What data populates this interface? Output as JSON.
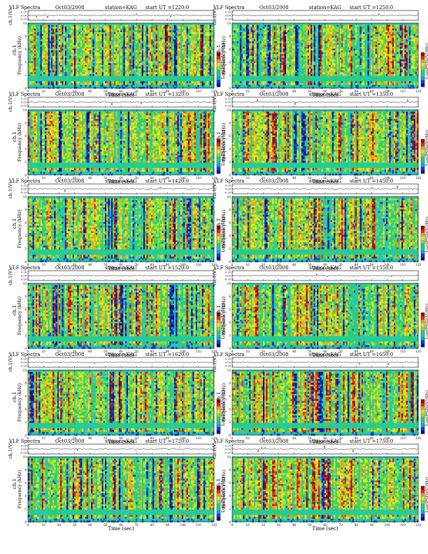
{
  "chart_data": [
    {
      "type": "heatmap",
      "panel": "spectrogram",
      "title": "VLF Spectra",
      "date": "Oct03/2008",
      "station": "station=KAG",
      "start": "start  UT  =1220:0",
      "ch_label": "ch.1(V)",
      "freq_label": "Frequency  (kHz)",
      "y_name": "ch.1",
      "xlabel": "Time  (sec)",
      "colorbar_label": "Log(PSD)(V²/Hz)",
      "x_ticks": [
        "0",
        "10",
        "20",
        "30",
        "40",
        "50",
        "60",
        "70",
        "80",
        "90",
        "100",
        "110",
        "120"
      ],
      "y_ticks": [
        "0",
        "2",
        "4",
        "6",
        "8",
        "10"
      ],
      "ch_ticks": [
        "0.20",
        "0.00",
        "-0.20"
      ],
      "xlim": [
        0,
        120
      ],
      "ylim": [
        0,
        10
      ]
    },
    {
      "type": "heatmap",
      "panel": "spectrogram",
      "title": "VLF Spectra",
      "date": "Oct03/2008",
      "station": "station=KAG",
      "start": "start  UT  =1250:0",
      "ch_label": "ch.1(V)",
      "freq_label": "Frequency  (kHz)",
      "y_name": "ch.1",
      "xlabel": "Time  (sec)",
      "colorbar_label": "Log(PSD)(V²/Hz)",
      "x_ticks": [
        "0",
        "10",
        "20",
        "30",
        "40",
        "50",
        "60",
        "70",
        "80",
        "90",
        "100",
        "110",
        "120"
      ],
      "y_ticks": [
        "0",
        "2",
        "4",
        "6",
        "8",
        "10"
      ],
      "ch_ticks": [
        "0.20",
        "0.00",
        "-0.20"
      ],
      "xlim": [
        0,
        120
      ],
      "ylim": [
        0,
        10
      ]
    },
    {
      "type": "heatmap",
      "panel": "spectrogram",
      "title": "VLF Spectra",
      "date": "Oct03/2008",
      "station": "station=KAG",
      "start": "start  UT  =1320:0",
      "ch_label": "ch.1(V)",
      "freq_label": "Frequency  (kHz)",
      "y_name": "ch.1",
      "xlabel": "Time  (sec)",
      "colorbar_label": "Log(PSD)(V²/Hz)",
      "x_ticks": [
        "0",
        "10",
        "20",
        "30",
        "40",
        "50",
        "60",
        "70",
        "80",
        "90",
        "100",
        "110",
        "120"
      ],
      "y_ticks": [
        "0",
        "2",
        "4",
        "6",
        "8",
        "10"
      ],
      "ch_ticks": [
        "0.20",
        "0.00",
        "-0.20"
      ],
      "xlim": [
        0,
        120
      ],
      "ylim": [
        0,
        10
      ]
    },
    {
      "type": "heatmap",
      "panel": "spectrogram",
      "title": "VLF Spectra",
      "date": "Oct03/2008",
      "station": "station=KAG",
      "start": "start  UT  =1350:0",
      "ch_label": "ch.1(V)",
      "freq_label": "Frequency  (kHz)",
      "y_name": "ch.1",
      "xlabel": "Time  (sec)",
      "colorbar_label": "Log(PSD)(V²/Hz)",
      "x_ticks": [
        "0",
        "10",
        "20",
        "30",
        "40",
        "50",
        "60",
        "70",
        "80",
        "90",
        "100",
        "110",
        "120"
      ],
      "y_ticks": [
        "0",
        "2",
        "4",
        "6",
        "8",
        "10"
      ],
      "ch_ticks": [
        "0.20",
        "0.00",
        "-0.20"
      ],
      "xlim": [
        0,
        120
      ],
      "ylim": [
        0,
        10
      ]
    },
    {
      "type": "heatmap",
      "panel": "spectrogram",
      "title": "VLF Spectra",
      "date": "Oct03/2008",
      "station": "station=KAG",
      "start": "start  UT  =1420:0",
      "ch_label": "ch.1(V)",
      "freq_label": "Frequency  (kHz)",
      "y_name": "ch.1",
      "xlabel": "Time  (sec)",
      "colorbar_label": "Log(PSD)(V²/Hz)",
      "x_ticks": [
        "0",
        "10",
        "20",
        "30",
        "40",
        "50",
        "60",
        "70",
        "80",
        "90",
        "100",
        "110",
        "120"
      ],
      "y_ticks": [
        "0",
        "2",
        "4",
        "6",
        "8",
        "10"
      ],
      "ch_ticks": [
        "0.20",
        "0.00",
        "-0.20"
      ],
      "xlim": [
        0,
        120
      ],
      "ylim": [
        0,
        10
      ]
    },
    {
      "type": "heatmap",
      "panel": "spectrogram",
      "title": "VLF Spectra",
      "date": "Oct03/2008",
      "station": "station=KAG",
      "start": "start  UT  =1450:0",
      "ch_label": "ch.1(V)",
      "freq_label": "Frequency  (kHz)",
      "y_name": "ch.1",
      "xlabel": "Time  (sec)",
      "colorbar_label": "Log(PSD)(V²/Hz)",
      "x_ticks": [
        "0",
        "10",
        "20",
        "30",
        "40",
        "50",
        "60",
        "70",
        "80",
        "90",
        "100",
        "110",
        "120"
      ],
      "y_ticks": [
        "0",
        "2",
        "4",
        "6",
        "8",
        "10"
      ],
      "ch_ticks": [
        "0.20",
        "0.00",
        "-0.20"
      ],
      "xlim": [
        0,
        120
      ],
      "ylim": [
        0,
        10
      ]
    },
    {
      "type": "heatmap",
      "panel": "spectrogram",
      "title": "VLF Spectra",
      "date": "Oct03/2008",
      "station": "station=KAG",
      "start": "start  UT  =1520:0",
      "ch_label": "ch.1(V)",
      "freq_label": "Frequency  (kHz)",
      "y_name": "ch.1",
      "xlabel": "Time  (sec)",
      "colorbar_label": "Log(PSD)(V²/Hz)",
      "x_ticks": [
        "0",
        "10",
        "20",
        "30",
        "40",
        "50",
        "60",
        "70",
        "80",
        "90",
        "100",
        "110",
        "120"
      ],
      "y_ticks": [
        "0",
        "2",
        "4",
        "6",
        "8",
        "10"
      ],
      "ch_ticks": [
        "0.20",
        "0.00",
        "-0.20"
      ],
      "xlim": [
        0,
        120
      ],
      "ylim": [
        0,
        10
      ]
    },
    {
      "type": "heatmap",
      "panel": "spectrogram",
      "title": "VLF Spectra",
      "date": "Oct03/2008",
      "station": "station=KAG",
      "start": "start  UT  =1550:0",
      "ch_label": "ch.1(V)",
      "freq_label": "Frequency  (kHz)",
      "y_name": "ch.1",
      "xlabel": "Time  (sec)",
      "colorbar_label": "Log(PSD)(V²/Hz)",
      "x_ticks": [
        "0",
        "10",
        "20",
        "30",
        "40",
        "50",
        "60",
        "70",
        "80",
        "90",
        "100",
        "110",
        "120"
      ],
      "y_ticks": [
        "0",
        "2",
        "4",
        "6",
        "8",
        "10"
      ],
      "ch_ticks": [
        "0.20",
        "0.00",
        "-0.20"
      ],
      "xlim": [
        0,
        120
      ],
      "ylim": [
        0,
        10
      ]
    },
    {
      "type": "heatmap",
      "panel": "spectrogram",
      "title": "VLF Spectra",
      "date": "Oct03/2008",
      "station": "station=KAG",
      "start": "start  UT  =1620:0",
      "ch_label": "ch.1(V)",
      "freq_label": "Frequency  (kHz)",
      "y_name": "ch.1",
      "xlabel": "Time  (sec)",
      "colorbar_label": "Log(PSD)(V²/Hz)",
      "x_ticks": [
        "0",
        "10",
        "20",
        "30",
        "40",
        "50",
        "60",
        "70",
        "80",
        "90",
        "100",
        "110",
        "120"
      ],
      "y_ticks": [
        "0",
        "2",
        "4",
        "6",
        "8",
        "10"
      ],
      "ch_ticks": [
        "0.20",
        "0.00",
        "-0.20"
      ],
      "xlim": [
        0,
        120
      ],
      "ylim": [
        0,
        10
      ]
    },
    {
      "type": "heatmap",
      "panel": "spectrogram",
      "title": "VLF Spectra",
      "date": "Oct03/2008",
      "station": "station=KAG",
      "start": "start  UT  =1650:0",
      "ch_label": "ch.1(V)",
      "freq_label": "Frequency  (kHz)",
      "y_name": "ch.1",
      "xlabel": "Time  (sec)",
      "colorbar_label": "Log(PSD)(V²/Hz)",
      "x_ticks": [
        "0",
        "10",
        "20",
        "30",
        "40",
        "50",
        "60",
        "70",
        "80",
        "90",
        "100",
        "110",
        "120"
      ],
      "y_ticks": [
        "0",
        "2",
        "4",
        "6",
        "8",
        "10"
      ],
      "ch_ticks": [
        "0.20",
        "0.00",
        "-0.20"
      ],
      "xlim": [
        0,
        120
      ],
      "ylim": [
        0,
        10
      ]
    },
    {
      "type": "heatmap",
      "panel": "spectrogram",
      "title": "VLF Spectra",
      "date": "Oct03/2008",
      "station": "station=KAG",
      "start": "start  UT  =1720:0",
      "ch_label": "ch.1(V)",
      "freq_label": "Frequency  (kHz)",
      "y_name": "ch.1",
      "xlabel": "Time  (sec)",
      "colorbar_label": "Log(PSD)(V²/Hz)",
      "x_ticks": [
        "0",
        "10",
        "20",
        "30",
        "40",
        "50",
        "60",
        "70",
        "80",
        "90",
        "100",
        "110",
        "120"
      ],
      "y_ticks": [
        "0",
        "2",
        "4",
        "6",
        "8",
        "10"
      ],
      "ch_ticks": [
        "0.20",
        "0.00",
        "-0.20"
      ],
      "xlim": [
        0,
        120
      ],
      "ylim": [
        0,
        10
      ]
    },
    {
      "type": "heatmap",
      "panel": "spectrogram",
      "title": "VLF Spectra",
      "date": "Oct03/2008",
      "station": "station=KAG",
      "start": "start  UT  =1750:0",
      "ch_label": "ch.1(V)",
      "freq_label": "Frequency  (kHz)",
      "y_name": "ch.1",
      "xlabel": "Time  (sec)",
      "colorbar_label": "Log(PSD)(V²/Hz)",
      "x_ticks": [
        "0",
        "10",
        "20",
        "30",
        "40",
        "50",
        "60",
        "70",
        "80",
        "90",
        "100",
        "110",
        "120"
      ],
      "y_ticks": [
        "0",
        "2",
        "4",
        "6",
        "8",
        "10"
      ],
      "ch_ticks": [
        "0.20",
        "0.00",
        "-0.20"
      ],
      "xlim": [
        0,
        120
      ],
      "ylim": [
        0,
        10
      ]
    }
  ],
  "colors": {
    "colormap": [
      "#1a0a8c",
      "#1040e0",
      "#10a8e0",
      "#20c8b0",
      "#30d060",
      "#90e030",
      "#e8e820",
      "#f0a020",
      "#e03010",
      "#b00000"
    ],
    "noise_floor": "#20c8c0",
    "axis": "#000000"
  }
}
